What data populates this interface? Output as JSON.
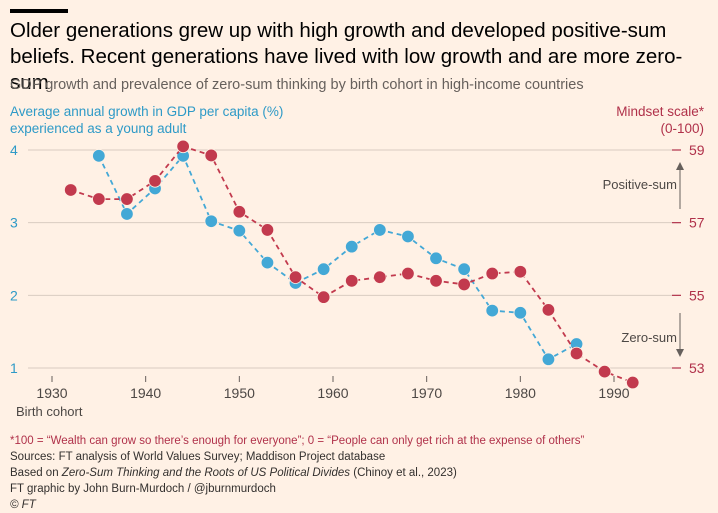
{
  "header": {
    "title": "Older generations grew up with high growth and developed positive-sum beliefs. Recent generations have lived with low growth and are more zero-sum",
    "subtitle": "GDP growth and prevalence of zero-sum thinking by birth cohort in high-income countries"
  },
  "colors": {
    "background": "#FFF1E5",
    "gdp_series": "#43A8D6",
    "mindset_series": "#C23A4E",
    "left_axis_text": "#2E9AC7",
    "right_axis_text": "#B0314A",
    "grid": "#D9CCC1"
  },
  "chart_data": {
    "type": "line",
    "left_axis": {
      "label_line1": "Average annual growth in GDP per capita (%)",
      "label_line2": "experienced as a young adult",
      "ticks": [
        "4",
        "3",
        "2",
        "1"
      ],
      "ylim": [
        0.95,
        4.15
      ]
    },
    "right_axis": {
      "label_line1": "Mindset scale*",
      "label_line2": "(0-100)",
      "ticks": [
        "59",
        "57",
        "55",
        "53"
      ],
      "ylim": [
        52.9,
        59.3
      ]
    },
    "x_axis": {
      "label": "Birth cohort",
      "ticks": [
        "1930",
        "1940",
        "1950",
        "1960",
        "1970",
        "1980",
        "1990"
      ],
      "xlim": [
        1928,
        1995
      ]
    },
    "grid": true,
    "annotations": {
      "positive_sum": "Positive-sum",
      "zero_sum": "Zero-sum"
    },
    "series": [
      {
        "name": "Average annual growth in GDP per capita (%)",
        "axis": "left",
        "x": [
          1935,
          1938,
          1941,
          1944,
          1947,
          1950,
          1953,
          1956,
          1959,
          1962,
          1965,
          1968,
          1971,
          1974,
          1977,
          1980,
          1983,
          1986
        ],
        "values": [
          3.92,
          3.12,
          3.47,
          3.92,
          3.02,
          2.89,
          2.45,
          2.17,
          2.36,
          2.67,
          2.9,
          2.81,
          2.51,
          2.36,
          1.79,
          1.76,
          1.12,
          1.33
        ]
      },
      {
        "name": "Mindset scale* (0-100)",
        "axis": "right",
        "x": [
          1932,
          1935,
          1938,
          1941,
          1944,
          1947,
          1950,
          1953,
          1956,
          1959,
          1962,
          1965,
          1968,
          1971,
          1974,
          1977,
          1980,
          1983,
          1986,
          1989,
          1992
        ],
        "values": [
          57.9,
          57.65,
          57.65,
          58.15,
          59.1,
          58.85,
          57.3,
          56.8,
          55.5,
          54.95,
          55.4,
          55.5,
          55.6,
          55.4,
          55.3,
          55.6,
          55.65,
          54.6,
          53.4,
          52.9,
          52.6
        ]
      }
    ]
  },
  "notes": {
    "footnote": "*100 = “Wealth can grow so there’s enough for everyone”; 0 = “People can only get rich at the expense of others”",
    "sources": "Sources: FT analysis of World Values Survey; Maddison Project database",
    "based_on_prefix": "Based on ",
    "based_on_title": "Zero-Sum Thinking and the Roots of US Political Divides",
    "based_on_suffix": " (Chinoy et al., 2023)",
    "credit": "FT graphic by John Burn-Murdoch / @jburnmurdoch",
    "copyright": "© FT"
  }
}
